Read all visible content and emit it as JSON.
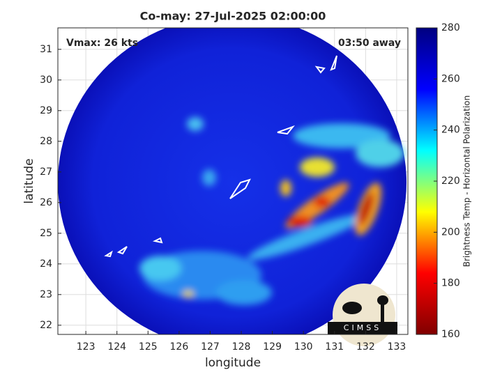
{
  "chart_data": {
    "type": "map",
    "title": "Co-may: 27-Jul-2025 02:00:00",
    "annotations": [
      "Vmax: 26 kts",
      "03:50 away"
    ],
    "xlabel": "longitude",
    "ylabel": "latitude",
    "xlim": [
      122.1,
      133.36
    ],
    "ylim": [
      21.7,
      31.7
    ],
    "xticks": [
      123,
      124,
      125,
      126,
      127,
      128,
      129,
      130,
      131,
      132,
      133
    ],
    "yticks": [
      22,
      23,
      24,
      25,
      26,
      27,
      28,
      29,
      30,
      31
    ],
    "grid": true,
    "colorbar": {
      "label": "Brightness Temp - Horizontal Polarization",
      "colormap": "jet",
      "lim": [
        160,
        280
      ],
      "ticks": [
        160,
        180,
        200,
        220,
        240,
        260,
        280
      ]
    },
    "logo": "CIMSS"
  }
}
